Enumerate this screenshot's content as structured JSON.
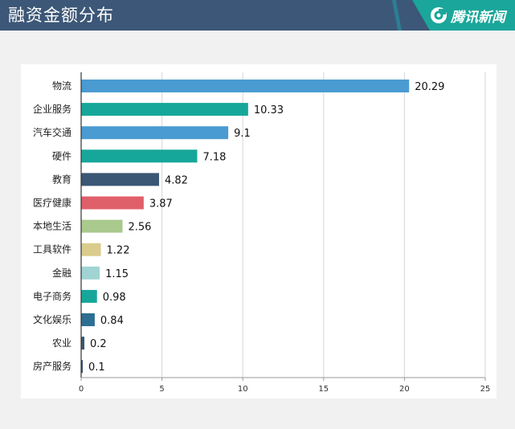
{
  "header": {
    "title": "融资金额分布",
    "brand": "腾讯新闻"
  },
  "colors": {
    "header_bg": "#3c5777",
    "brand_teal": "#1aa69a"
  },
  "chart_data": {
    "type": "bar",
    "orientation": "horizontal",
    "categories": [
      "物流",
      "企业服务",
      "汽车交通",
      "硬件",
      "教育",
      "医疗健康",
      "本地生活",
      "工具软件",
      "金融",
      "电子商务",
      "文化娱乐",
      "农业",
      "房产服务"
    ],
    "values": [
      20.29,
      10.33,
      9.1,
      7.18,
      4.82,
      3.87,
      2.56,
      1.22,
      1.15,
      0.98,
      0.84,
      0.2,
      0.1
    ],
    "value_labels": [
      "20.29",
      "10.33",
      "9.1",
      "7.18",
      "4.82",
      "3.87",
      "2.56",
      "1.22",
      "1.15",
      "0.98",
      "0.84",
      "0.2",
      "0.1"
    ],
    "bar_colors": [
      "#4a9bd1",
      "#16a79a",
      "#4a9bd1",
      "#16a79a",
      "#3a5775",
      "#e0606a",
      "#a9c98d",
      "#d9cc8c",
      "#9fd4d2",
      "#16a79a",
      "#2d6e92",
      "#3a5775",
      "#3a5775"
    ],
    "xlim": [
      0,
      25
    ],
    "xticks": [
      0,
      5,
      10,
      15,
      20,
      25
    ],
    "xtick_labels": [
      "0",
      "5",
      "10",
      "15",
      "20",
      "25"
    ],
    "grid": "vertical",
    "title": "",
    "xlabel": "",
    "ylabel": ""
  }
}
